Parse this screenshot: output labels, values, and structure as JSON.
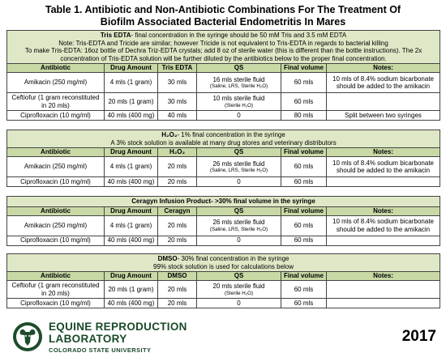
{
  "title_line1": "Table 1. Antibiotic and Non-Antibiotic Combinations For The Treatment Of",
  "title_line2": "Biofilm Associated Bacterial Endometritis In Mares",
  "tris": {
    "heading_bold": "Tris EDTA",
    "heading_rest": "- final concentration in the syringe should be 50 mM Tris and 3.5 mM EDTA",
    "note1": "Note: Tris-EDTA and Tricide are similar; however Tricide is not equivalent to Tris-EDTA in regards to bacterial killing",
    "note2": "To make Tris-EDTA: 16oz bottle of Dechra Triz-EDTA crystals; add 8 oz of sterile water (this is different than the bottle instructions). The 2x concentration of Tris-EDTA solution will be further diluted by the antibiotics below to the proper final concentration.",
    "headers": [
      "Antibiotic",
      "Drug Amount",
      "Tris EDTA",
      "QS",
      "Final volume",
      "Notes:"
    ],
    "rows": [
      {
        "antibiotic": "Amikacin (250 mg/ml)",
        "amount": "4 mls (1 gram)",
        "agent": "30 mls",
        "qs": "16 mls sterile fluid",
        "qs_sub": "(Saline, LRS, Sterile H₂O)",
        "final": "60 mls",
        "notes": "10 mls of 8.4% sodium bicarbonate should be added to the amikacin"
      },
      {
        "antibiotic": "Ceftiofur (1 gram reconstituted in 20 mls)",
        "amount": "20 mls (1 gram)",
        "agent": "30 mls",
        "qs": "10 mls sterile fluid",
        "qs_sub": "(Sterile H₂O)",
        "final": "60 mls",
        "notes": ""
      },
      {
        "antibiotic": "Ciprofloxacin (10 mg/ml)",
        "amount": "40 mls (400 mg)",
        "agent": "40 mls",
        "qs": "0",
        "qs_sub": "",
        "final": "80 mls",
        "notes": "Split between two syringes"
      }
    ]
  },
  "h2o2": {
    "heading_bold": "H₂O₂",
    "heading_rest": "- 1% final concentration in the syringe",
    "note1": "A 3% stock solution is available at many drug stores and veterinary distributors",
    "headers": [
      "Antibiotic",
      "Drug Amount",
      "H₂O₂",
      "QS",
      "Final volume",
      "Notes:"
    ],
    "rows": [
      {
        "antibiotic": "Amikacin (250 mg/ml)",
        "amount": "4 mls (1 gram)",
        "agent": "20 mls",
        "qs": "26 mls sterile fluid",
        "qs_sub": "(Saline, LRS, Sterile H₂O)",
        "final": "60 mls",
        "notes": "10 mls of 8.4% sodium bicarbonate should be added to the amikacin"
      },
      {
        "antibiotic": "Ciprofloxacin (10 mg/ml)",
        "amount": "40 mls (400 mg)",
        "agent": "20 mls",
        "qs": "0",
        "qs_sub": "",
        "final": "60 mls",
        "notes": ""
      }
    ]
  },
  "ceragyn": {
    "heading_bold": "Ceragyn Infusion Product- >30% final volume in the syringe",
    "heading_rest": "",
    "headers": [
      "Antibiotic",
      "Drug Amount",
      "Ceragyn",
      "QS",
      "Final volume",
      "Notes:"
    ],
    "rows": [
      {
        "antibiotic": "Amikacin (250 mg/ml)",
        "amount": "4 mls (1 gram)",
        "agent": "20 mls",
        "qs": "26 mls sterile fluid",
        "qs_sub": "(Saline, LRS, Sterile H₂O)",
        "final": "60 mls",
        "notes": "10 mls of 8.4% sodium bicarbonate should be added to the amikacin"
      },
      {
        "antibiotic": "Ciprofloxacin (10 mg/ml)",
        "amount": "40 mls (400 mg)",
        "agent": "20 mls",
        "qs": "0",
        "qs_sub": "",
        "final": "60 mls",
        "notes": ""
      }
    ]
  },
  "dmso": {
    "heading_bold": "DMSO",
    "heading_rest": "- 30% final concentration in the syringe",
    "note1": "99% stock solution is used for calculations below",
    "headers": [
      "Antibiotic",
      "Drug Amount",
      "DMSO",
      "QS",
      "Final volume",
      "Notes:"
    ],
    "rows": [
      {
        "antibiotic": "Ceftiofur (1 gram reconstituted in 20 mls)",
        "amount": "20 mls (1 gram)",
        "agent": "20 mls",
        "qs": "20 mls sterile fluid",
        "qs_sub": "(Sterile H₂O)",
        "final": "60 mls",
        "notes": ""
      },
      {
        "antibiotic": "Ciprofloxacin (10 mg/ml)",
        "amount": "40 mls (400 mg)",
        "agent": "20 mls",
        "qs": "0",
        "qs_sub": "",
        "final": "60 mls",
        "notes": ""
      }
    ]
  },
  "footer": {
    "org_line1": "EQUINE REPRODUCTION",
    "org_line2": "LABORATORY",
    "org_line3": "COLORADO STATE UNIVERSITY",
    "year": "2017",
    "logo_icon": "csu-ram-logo-icon",
    "brand_color": "#1e4d2b",
    "header_color": "#c9d9a6",
    "section_color": "#dfe8c6"
  }
}
